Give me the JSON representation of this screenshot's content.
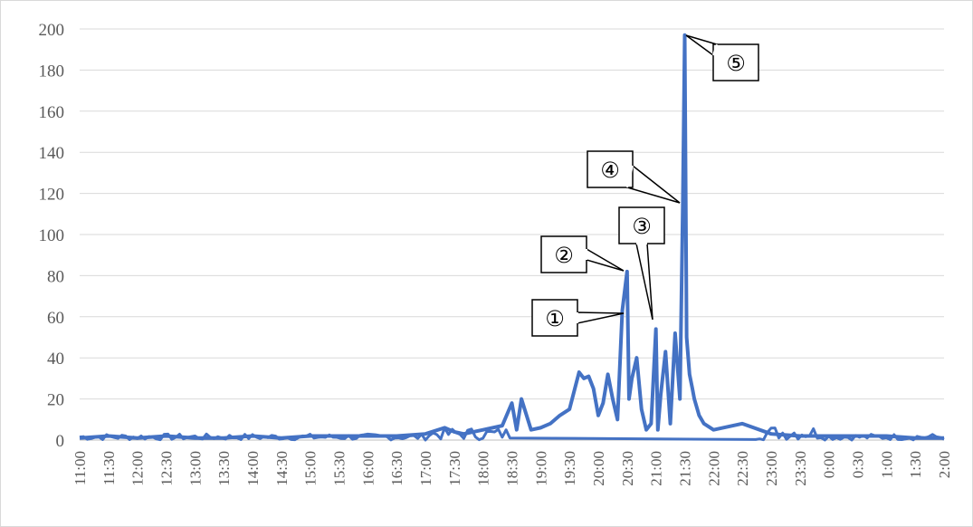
{
  "chart_data": {
    "type": "line",
    "title": "",
    "xlabel": "",
    "ylabel": "",
    "ylim": [
      0,
      200
    ],
    "yticks": [
      "0",
      "20",
      "40",
      "60",
      "80",
      "100",
      "120",
      "140",
      "160",
      "180",
      "200"
    ],
    "xticks": [
      "11:00",
      "11:30",
      "12:00",
      "12:30",
      "13:00",
      "13:30",
      "14:00",
      "14:30",
      "15:00",
      "15:30",
      "16:00",
      "16:30",
      "17:00",
      "17:30",
      "18:00",
      "18:30",
      "19:00",
      "19:30",
      "20:00",
      "20:30",
      "21:00",
      "21:30",
      "22:00",
      "22:30",
      "23:00",
      "23:30",
      "0:00",
      "0:30",
      "1:00",
      "1:30",
      "2:00"
    ],
    "grid": "horizontal",
    "line_color": "#4472c4",
    "series": [
      {
        "x": [
          "11:00",
          "11:30",
          "12:00",
          "12:30",
          "13:00",
          "13:30",
          "14:00",
          "14:30",
          "15:00",
          "15:30",
          "16:00",
          "16:30",
          "17:00",
          "17:20",
          "17:30",
          "17:40",
          "18:00",
          "18:20",
          "18:30",
          "18:35",
          "18:40",
          "18:50",
          "19:00",
          "19:10",
          "19:20",
          "19:30",
          "19:40",
          "19:45",
          "19:50",
          "19:55",
          "20:00",
          "20:05",
          "20:10",
          "20:15",
          "20:20",
          "20:25",
          "20:30",
          "20:32",
          "20:35",
          "20:40",
          "20:45",
          "20:50",
          "20:55",
          "21:00",
          "21:02",
          "21:05",
          "21:10",
          "21:15",
          "21:20",
          "21:25",
          "21:28",
          "21:30",
          "21:32",
          "21:35",
          "21:38",
          "21:40",
          "21:45",
          "21:50",
          "22:00",
          "22:30",
          "23:00",
          "23:30",
          "0:00",
          "0:30",
          "1:00",
          "1:30",
          "2:00"
        ],
        "values": [
          1,
          2,
          1,
          2,
          1,
          1,
          2,
          1,
          2,
          2,
          2,
          2,
          3,
          6,
          4,
          3,
          5,
          7,
          18,
          5,
          20,
          5,
          6,
          8,
          12,
          15,
          33,
          30,
          31,
          25,
          12,
          18,
          32,
          20,
          10,
          63,
          82,
          20,
          30,
          40,
          15,
          5,
          8,
          54,
          5,
          22,
          43,
          8,
          52,
          20,
          114,
          197,
          50,
          32,
          25,
          20,
          12,
          8,
          5,
          8,
          3,
          2,
          2,
          2,
          2,
          1,
          1
        ]
      }
    ],
    "annotations": [
      "①",
      "②",
      "③",
      "④",
      "⑤"
    ]
  }
}
